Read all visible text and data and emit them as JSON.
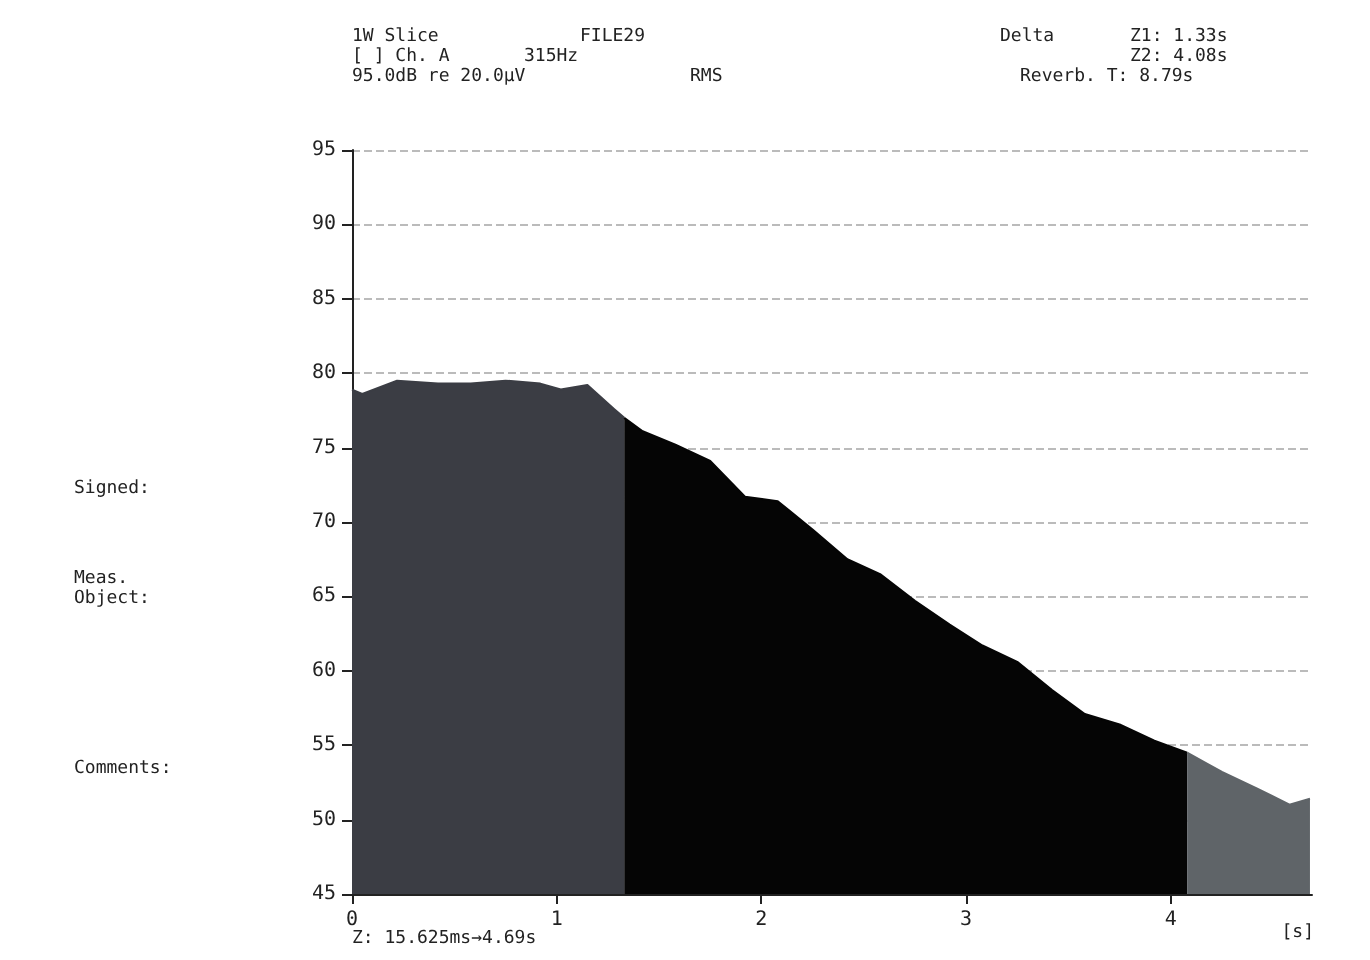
{
  "chart_data": {
    "type": "area",
    "xlabel": "[s]",
    "annotations": [
      "1W Slice",
      "[ ] Ch. A",
      "95.0dB re 20.0µV",
      "FILE29",
      "315Hz",
      "RMS",
      "Delta",
      "Z1: 1.33s",
      "Z2: 4.08s",
      "Reverb. T: 8.79s",
      "Signed:",
      "Meas.",
      "Object:",
      "Comments:",
      "Z: 15.625ms→4.69s"
    ],
    "series": [
      {
        "color": "#3b3d44",
        "x": [
          0,
          0.05,
          0.22,
          0.42,
          0.58,
          0.75,
          0.92,
          1.02,
          1.15,
          1.28,
          1.33
        ],
        "values": [
          78.9,
          78.6,
          79.5,
          79.3,
          79.3,
          79.5,
          79.3,
          78.9,
          79.2,
          77.6,
          77.0
        ]
      },
      {
        "color": "#050505",
        "x": [
          1.33,
          1.42,
          1.58,
          1.75,
          1.92,
          2.08,
          2.25,
          2.42,
          2.58,
          2.75,
          2.92,
          3.08,
          3.25,
          3.42,
          3.58,
          3.75,
          3.92,
          4.08
        ],
        "values": [
          77.0,
          76.1,
          75.2,
          74.1,
          71.7,
          71.4,
          69.5,
          67.5,
          66.5,
          64.7,
          63.1,
          61.7,
          60.6,
          58.7,
          57.1,
          56.4,
          55.3,
          54.5
        ]
      },
      {
        "color": "#5f6468",
        "x": [
          4.08,
          4.25,
          4.42,
          4.58,
          4.68
        ],
        "values": [
          54.5,
          53.2,
          52.1,
          51.0,
          51.4
        ]
      }
    ],
    "xlim": [
      0,
      4.69
    ],
    "xticks": [
      0,
      1,
      2,
      3,
      4
    ],
    "ylim": [
      45,
      95
    ],
    "yticks": [
      45,
      50,
      55,
      60,
      65,
      70,
      75,
      80,
      85,
      90,
      95
    ],
    "grid": "y"
  }
}
